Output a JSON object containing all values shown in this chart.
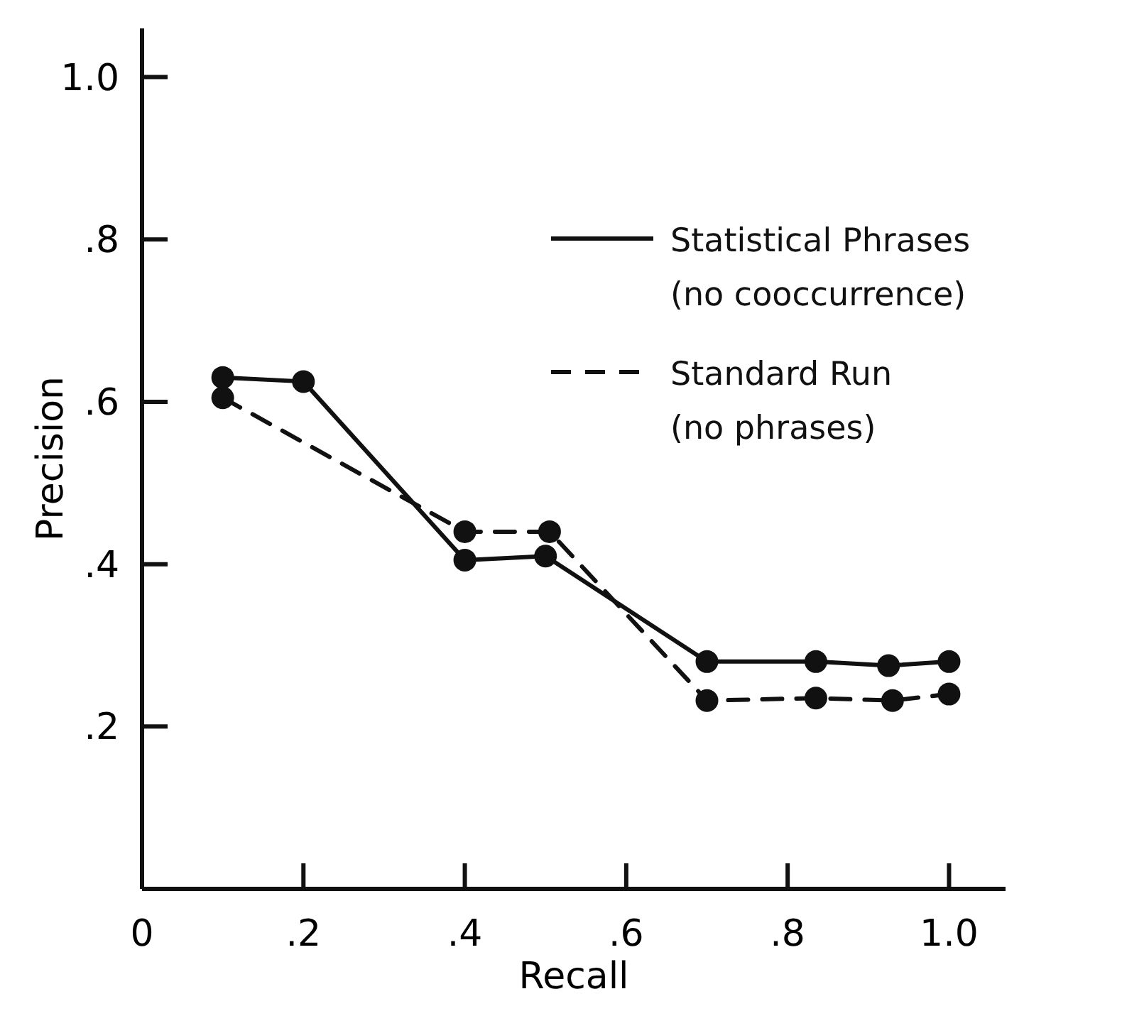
{
  "chart_data": {
    "type": "line",
    "xlabel": "Recall",
    "ylabel": "Precision",
    "xlim": [
      0,
      1.07
    ],
    "ylim": [
      0,
      1.06
    ],
    "xticks": [
      {
        "value": 0,
        "label": "0"
      },
      {
        "value": 0.2,
        "label": ".2"
      },
      {
        "value": 0.4,
        "label": ".4"
      },
      {
        "value": 0.6,
        "label": ".6"
      },
      {
        "value": 0.8,
        "label": ".8"
      },
      {
        "value": 1.0,
        "label": "1.0"
      }
    ],
    "yticks": [
      {
        "value": 0.2,
        "label": ".2"
      },
      {
        "value": 0.4,
        "label": ".4"
      },
      {
        "value": 0.6,
        "label": ".6"
      },
      {
        "value": 0.8,
        "label": ".8"
      },
      {
        "value": 1.0,
        "label": "1.0"
      }
    ],
    "grid": false,
    "legend": "top right",
    "marker": "circle",
    "series": [
      {
        "name": "Statistical Phrases\n(no cooccurrence)",
        "color": "#111111",
        "line_style": "solid",
        "x": [
          0.1,
          0.2,
          0.4,
          0.5,
          0.7,
          0.835,
          0.925,
          1.0
        ],
        "values": [
          0.63,
          0.625,
          0.405,
          0.41,
          0.28,
          0.28,
          0.275,
          0.28
        ]
      },
      {
        "name": "Standard Run\n(no phrases)",
        "color": "#111111",
        "line_style": "dashed",
        "x": [
          0.1,
          0.4,
          0.505,
          0.7,
          0.835,
          0.93,
          1.0
        ],
        "values": [
          0.605,
          0.44,
          0.44,
          0.232,
          0.235,
          0.232,
          0.24
        ]
      }
    ]
  }
}
